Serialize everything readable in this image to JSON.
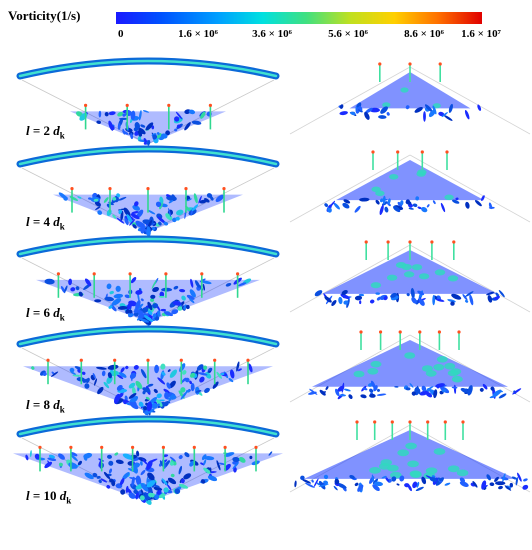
{
  "colorbar": {
    "title": "Vorticity(1/s)",
    "colors": [
      "#1a1aff",
      "#0050ff",
      "#00a0ff",
      "#00e0e0",
      "#40e080",
      "#c0e020",
      "#ffd000",
      "#ff7000",
      "#e00000"
    ],
    "ticks": [
      {
        "label": "0",
        "value": 0
      },
      {
        "label": "1.6 × 10⁶",
        "value": 1600000
      },
      {
        "label": "3.6 × 10⁶",
        "value": 3600000
      },
      {
        "label": "5.6 × 10⁶",
        "value": 5600000
      },
      {
        "label": "8.6 × 10⁶",
        "value": 8600000
      },
      {
        "label": "1.6 × 10⁷",
        "value": 16000000
      }
    ]
  },
  "rows": [
    {
      "label_prefix": "l",
      "label_eq": " = 2 ",
      "label_var": "d",
      "label_sub": "k"
    },
    {
      "label_prefix": "l",
      "label_eq": " = 4 ",
      "label_var": "d",
      "label_sub": "k"
    },
    {
      "label_prefix": "l",
      "label_eq": " = 6 ",
      "label_var": "d",
      "label_sub": "k"
    },
    {
      "label_prefix": "l",
      "label_eq": " = 8 ",
      "label_var": "d",
      "label_sub": "k"
    },
    {
      "label_prefix": "l",
      "label_eq": " = 10 ",
      "label_var": "d",
      "label_sub": "k"
    }
  ]
}
